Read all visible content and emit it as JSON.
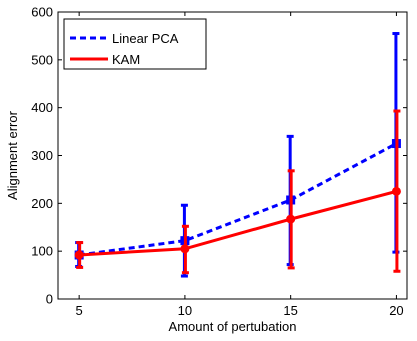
{
  "chart_data": {
    "type": "line",
    "xlabel": "Amount of pertubation",
    "ylabel": "Alignment error",
    "x": [
      5,
      10,
      15,
      20
    ],
    "xticks": [
      5,
      10,
      15,
      20
    ],
    "yticks": [
      0,
      100,
      200,
      300,
      400,
      500,
      600
    ],
    "xlim": [
      4,
      20.5
    ],
    "ylim": [
      0,
      600
    ],
    "grid": false,
    "legend_position": "top-left",
    "series": [
      {
        "name": "Linear PCA",
        "color": "#0000ff",
        "style": "dashed",
        "values": [
          92,
          122,
          207,
          325
        ],
        "err_low": [
          68,
          48,
          72,
          98
        ],
        "err_high": [
          118,
          196,
          340,
          555
        ]
      },
      {
        "name": "KAM",
        "color": "#ff0000",
        "style": "solid",
        "values": [
          92,
          105,
          167,
          225
        ],
        "err_low": [
          66,
          55,
          65,
          58
        ],
        "err_high": [
          118,
          152,
          268,
          393
        ]
      }
    ]
  }
}
